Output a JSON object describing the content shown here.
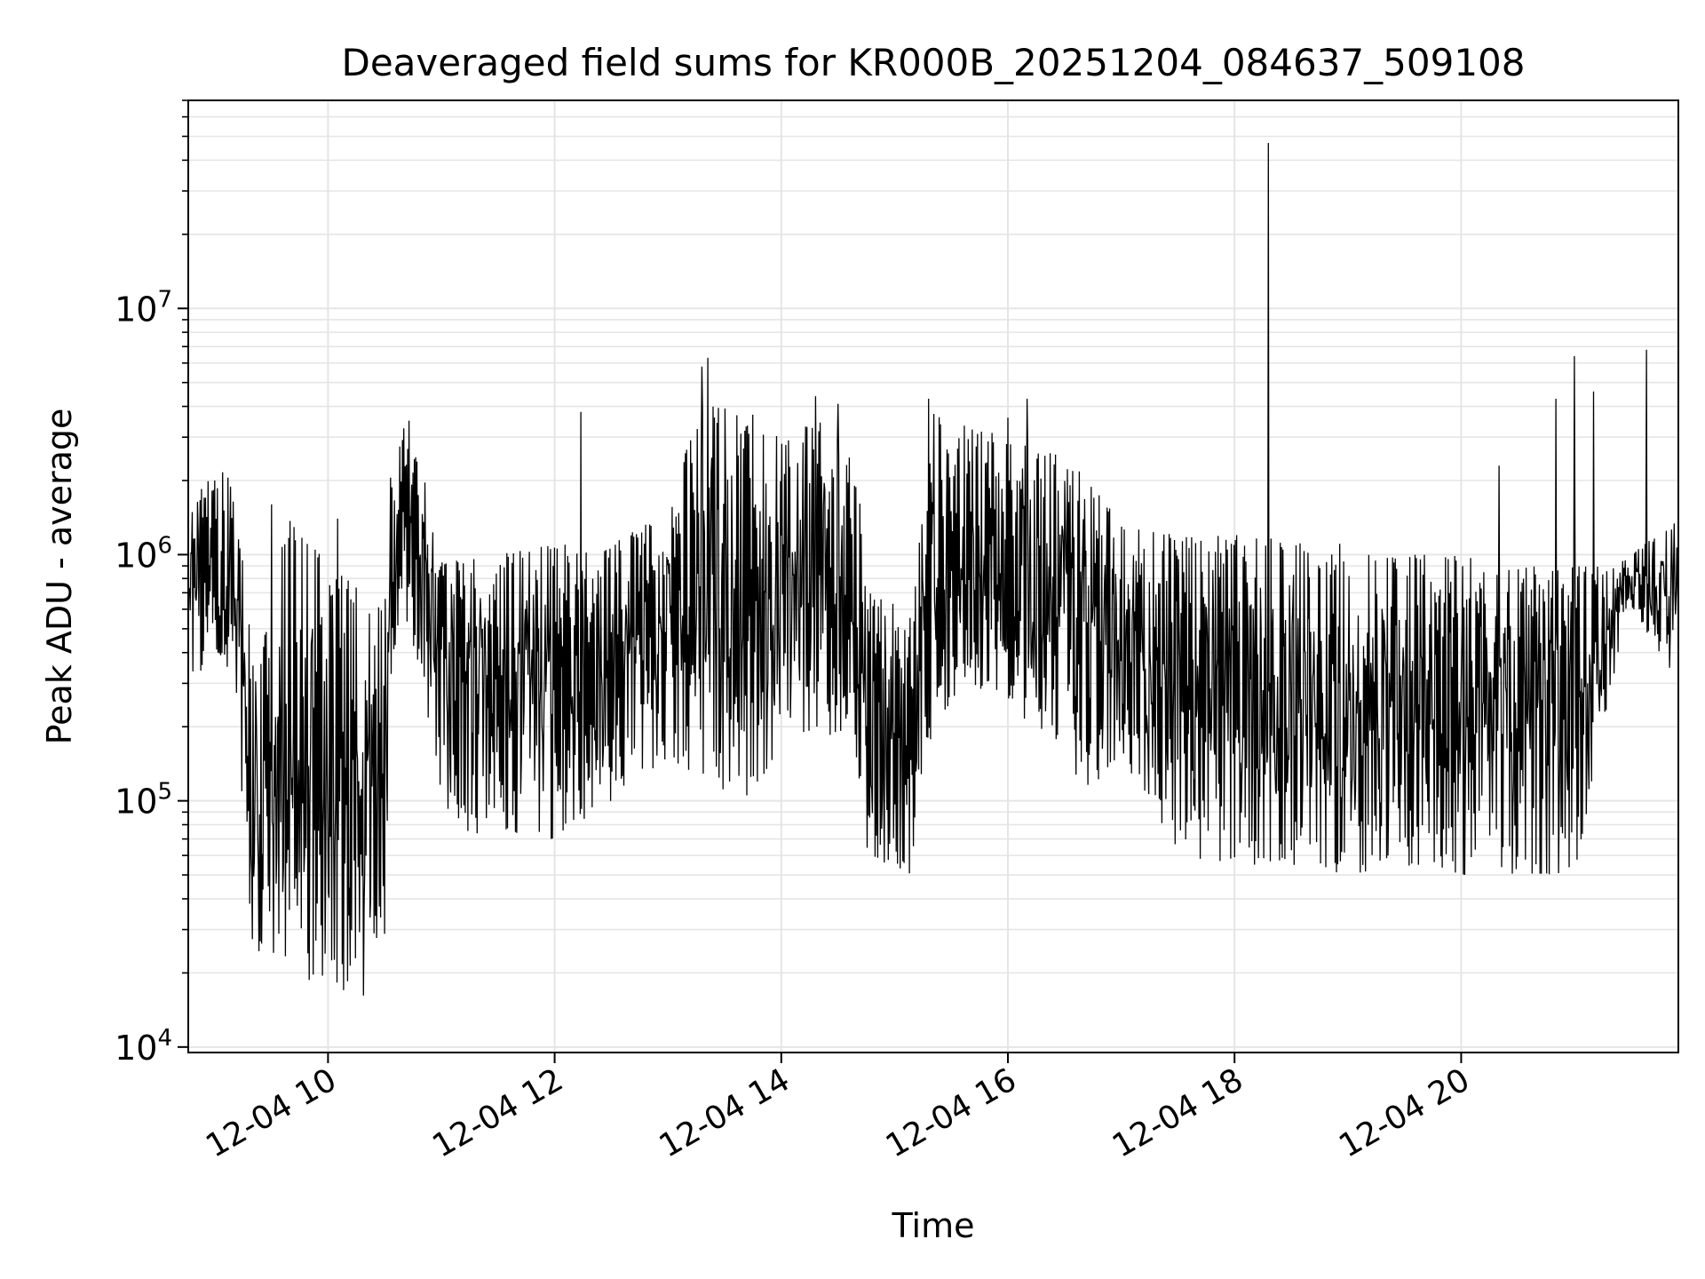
{
  "chart_data": {
    "type": "line",
    "title": "Deaveraged field sums for KR000B_20251204_084637_509108",
    "xlabel": "Time",
    "ylabel": "Peak ADU - average",
    "x_scale": "time",
    "y_scale": "log",
    "xlim": [
      "2025-12-04 08:46",
      "2025-12-04 21:55"
    ],
    "ylim": [
      9500,
      70000000
    ],
    "x_ticks": [
      {
        "value": "2025-12-04 10:00",
        "label": "12-04 10"
      },
      {
        "value": "2025-12-04 12:00",
        "label": "12-04 12"
      },
      {
        "value": "2025-12-04 14:00",
        "label": "12-04 14"
      },
      {
        "value": "2025-12-04 16:00",
        "label": "12-04 16"
      },
      {
        "value": "2025-12-04 18:00",
        "label": "12-04 18"
      },
      {
        "value": "2025-12-04 20:00",
        "label": "12-04 20"
      }
    ],
    "y_ticks": [
      {
        "value": 10000,
        "base": "10",
        "exp": "4"
      },
      {
        "value": 100000,
        "base": "10",
        "exp": "5"
      },
      {
        "value": 1000000,
        "base": "10",
        "exp": "6"
      },
      {
        "value": 10000000,
        "base": "10",
        "exp": "7"
      }
    ],
    "grid": true,
    "line_color": "#000000",
    "grid_color": "#e5e5e5",
    "series": [
      {
        "envelope": [
          [
            "2025-12-04 08:46",
            300000,
            1600000
          ],
          [
            "2025-12-04 09:05",
            400000,
            2400000
          ],
          [
            "2025-12-04 09:12",
            200000,
            1500000
          ],
          [
            "2025-12-04 09:20",
            25000,
            400000
          ],
          [
            "2025-12-04 09:40",
            22000,
            1500000
          ],
          [
            "2025-12-04 10:00",
            16000,
            900000
          ],
          [
            "2025-12-04 10:20",
            16000,
            700000
          ],
          [
            "2025-12-04 10:30",
            25000,
            800000
          ],
          [
            "2025-12-04 10:33",
            300000,
            2200000
          ],
          [
            "2025-12-04 10:40",
            600000,
            3300000
          ],
          [
            "2025-12-04 10:50",
            300000,
            2200000
          ],
          [
            "2025-12-04 11:00",
            80000,
            1000000
          ],
          [
            "2025-12-04 11:30",
            70000,
            1000000
          ],
          [
            "2025-12-04 12:00",
            70000,
            1100000
          ],
          [
            "2025-12-04 12:30",
            100000,
            1100000
          ],
          [
            "2025-12-04 13:00",
            150000,
            1500000
          ],
          [
            "2025-12-04 13:20",
            120000,
            5000000
          ],
          [
            "2025-12-04 13:40",
            100000,
            3500000
          ],
          [
            "2025-12-04 14:00",
            150000,
            3000000
          ],
          [
            "2025-12-04 14:20",
            200000,
            3500000
          ],
          [
            "2025-12-04 14:40",
            150000,
            2500000
          ],
          [
            "2025-12-04 14:45",
            60000,
            700000
          ],
          [
            "2025-12-04 15:10",
            50000,
            650000
          ],
          [
            "2025-12-04 15:20",
            200000,
            3800000
          ],
          [
            "2025-12-04 15:40",
            300000,
            3300000
          ],
          [
            "2025-12-04 16:00",
            250000,
            3000000
          ],
          [
            "2025-12-04 16:30",
            150000,
            2500000
          ],
          [
            "2025-12-04 16:45",
            100000,
            2000000
          ],
          [
            "2025-12-04 17:00",
            150000,
            1300000
          ],
          [
            "2025-12-04 17:30",
            60000,
            1200000
          ],
          [
            "2025-12-04 18:00",
            55000,
            1200000
          ],
          [
            "2025-12-04 18:30",
            55000,
            1200000
          ],
          [
            "2025-12-04 19:00",
            50000,
            1100000
          ],
          [
            "2025-12-04 19:30",
            55000,
            1000000
          ],
          [
            "2025-12-04 20:00",
            50000,
            1000000
          ],
          [
            "2025-12-04 20:30",
            50000,
            900000
          ],
          [
            "2025-12-04 21:00",
            50000,
            900000
          ],
          [
            "2025-12-04 21:20",
            300000,
            900000
          ],
          [
            "2025-12-04 21:30",
            600000,
            1000000
          ],
          [
            "2025-12-04 21:55",
            300000,
            1400000
          ]
        ],
        "spikes": [
          [
            "2025-12-04 09:00",
            2000000
          ],
          [
            "2025-12-04 09:30",
            1600000
          ],
          [
            "2025-12-04 10:05",
            1400000
          ],
          [
            "2025-12-04 10:43",
            3500000
          ],
          [
            "2025-12-04 12:14",
            3800000
          ],
          [
            "2025-12-04 13:18",
            5800000
          ],
          [
            "2025-12-04 13:21",
            6300000
          ],
          [
            "2025-12-04 13:45",
            3700000
          ],
          [
            "2025-12-04 14:18",
            4400000
          ],
          [
            "2025-12-04 14:30",
            4100000
          ],
          [
            "2025-12-04 15:18",
            4300000
          ],
          [
            "2025-12-04 16:00",
            3600000
          ],
          [
            "2025-12-04 16:10",
            4300000
          ],
          [
            "2025-12-04 18:18",
            47000000
          ],
          [
            "2025-12-04 20:20",
            2300000
          ],
          [
            "2025-12-04 20:50",
            4300000
          ],
          [
            "2025-12-04 21:00",
            6400000
          ],
          [
            "2025-12-04 21:10",
            4600000
          ],
          [
            "2025-12-04 21:38",
            6800000
          ]
        ]
      }
    ]
  }
}
